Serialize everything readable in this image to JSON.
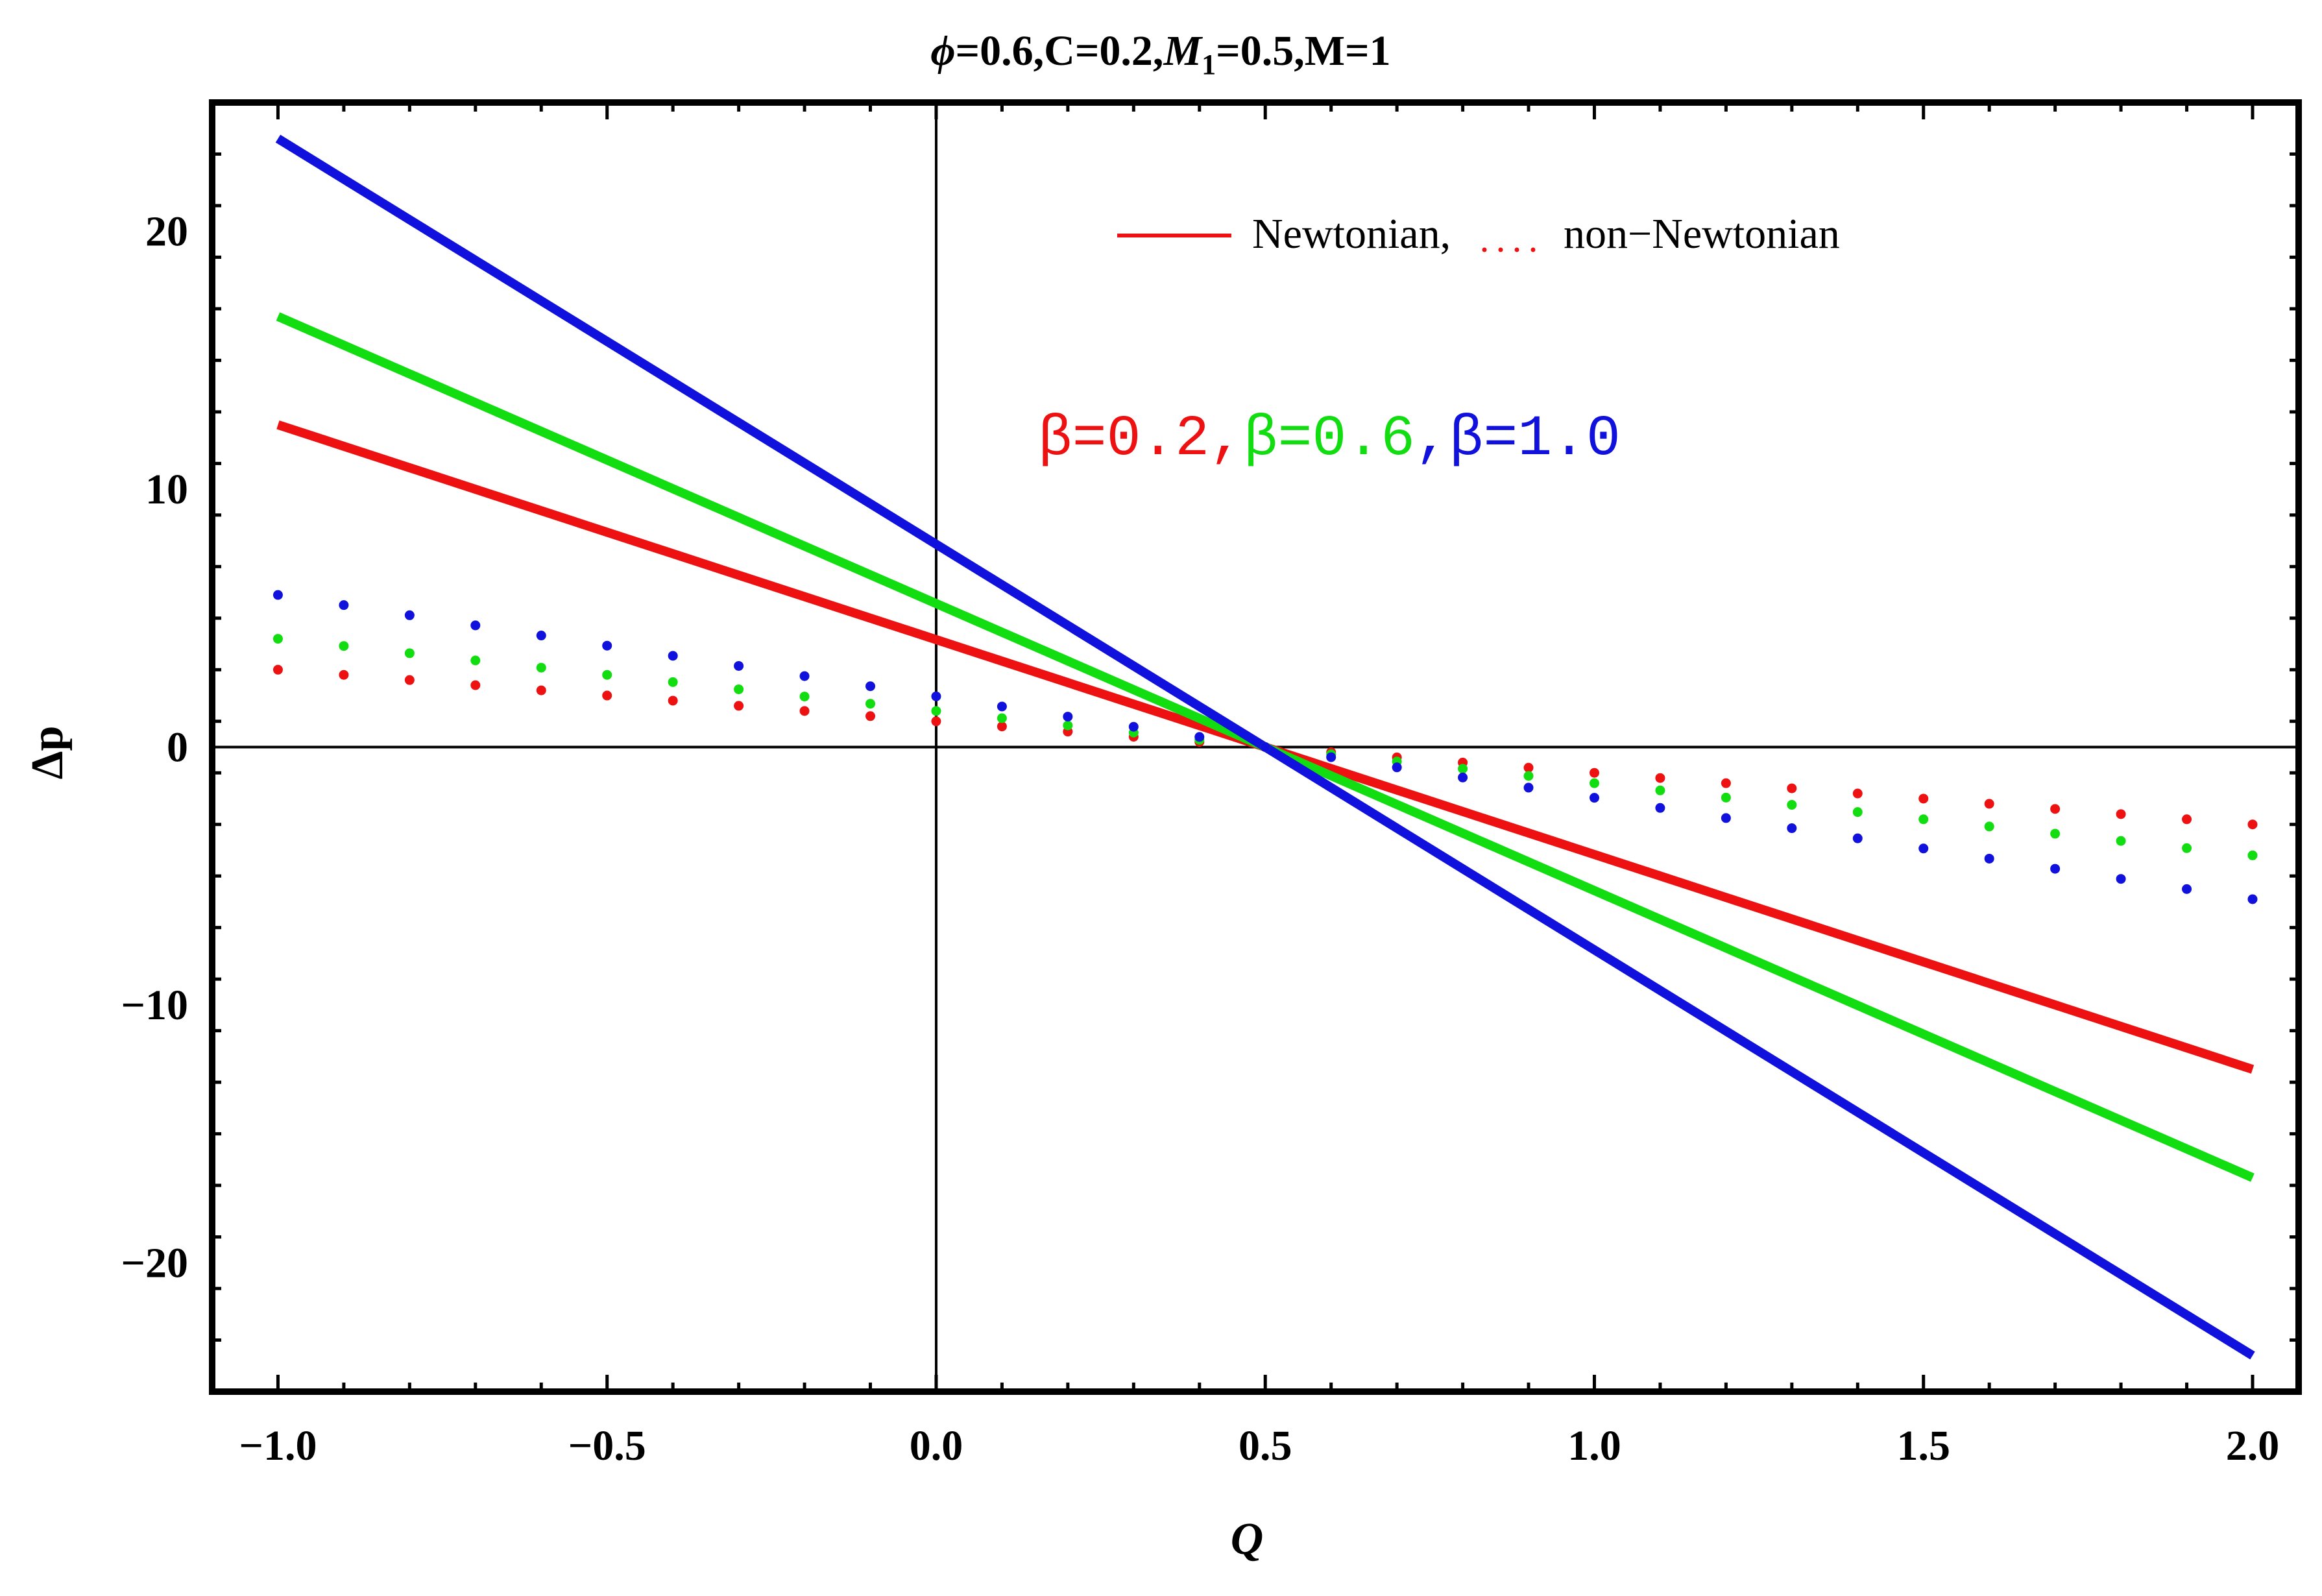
{
  "chart_data": {
    "type": "line",
    "title": {
      "phi": "ϕ",
      "rest1": "=0.6,C=0.2,",
      "m": "M",
      "sub": "1",
      "rest2": "=0.5,M=1"
    },
    "xlabel": "Q",
    "ylabel": "Δp",
    "xlim": [
      -1.1,
      2.07
    ],
    "ylim": [
      -25,
      25
    ],
    "xticks": [
      -1.0,
      -0.5,
      0.0,
      0.5,
      1.0,
      1.5,
      2.0
    ],
    "xtick_labels": [
      "−1.0",
      "−0.5",
      "0.0",
      "0.5",
      "1.0",
      "1.5",
      "2.0"
    ],
    "yticks": [
      -20,
      -10,
      0,
      10,
      20
    ],
    "ytick_labels": [
      "−20",
      "−10",
      "0",
      "10",
      "20"
    ],
    "legend": {
      "solid_label": "Newtonian,",
      "dotted_label": "non−Newtonian",
      "solid_color": "#ee1111",
      "dotted_color": "#ee1111"
    },
    "beta_labels": [
      {
        "text": "β=0.2",
        "color": "#ee1111"
      },
      {
        "text": ",",
        "color": "#ee1111"
      },
      {
        "text": "β=0.6",
        "color": "#11dd11"
      },
      {
        "text": ",",
        "color": "#1111dd"
      },
      {
        "text": "β=1.0",
        "color": "#1111dd"
      }
    ],
    "series": [
      {
        "name": "Newtonian β=0.2",
        "style": "solid",
        "color": "#ee1111",
        "x": [
          -1.0,
          2.0
        ],
        "y": [
          12.5,
          -12.5
        ]
      },
      {
        "name": "Newtonian β=0.6",
        "style": "solid",
        "color": "#11dd11",
        "x": [
          -1.0,
          2.0
        ],
        "y": [
          16.7,
          -16.7
        ]
      },
      {
        "name": "Newtonian β=1.0",
        "style": "solid",
        "color": "#1111dd",
        "x": [
          -1.0,
          2.0
        ],
        "y": [
          23.6,
          -23.6
        ]
      },
      {
        "name": "non-Newtonian β=0.2",
        "style": "dotted",
        "color": "#ee1111",
        "x": [
          -1.0,
          2.0
        ],
        "y": [
          3.0,
          -3.0
        ]
      },
      {
        "name": "non-Newtonian β=0.6",
        "style": "dotted",
        "color": "#11dd11",
        "x": [
          -1.0,
          2.0
        ],
        "y": [
          4.2,
          -4.2
        ]
      },
      {
        "name": "non-Newtonian β=1.0",
        "style": "dotted",
        "color": "#1111dd",
        "x": [
          -1.0,
          2.0
        ],
        "y": [
          5.9,
          -5.9
        ]
      }
    ]
  }
}
